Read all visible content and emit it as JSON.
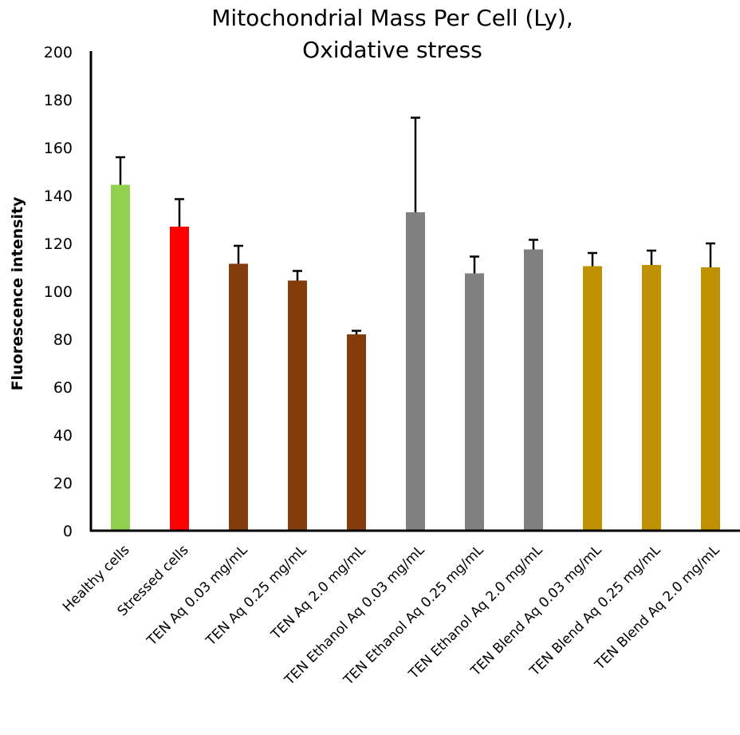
{
  "chart_data": {
    "type": "bar",
    "title_lines": [
      "Mitochondrial Mass Per Cell (Ly),",
      "Oxidative stress"
    ],
    "xlabel": "",
    "ylabel": "Fluorescence intensity",
    "ylim": [
      0,
      200
    ],
    "yticks": [
      0,
      20,
      40,
      60,
      80,
      100,
      120,
      140,
      160,
      180,
      200
    ],
    "grid": false,
    "categories": [
      "Healthy cells",
      "Stressed cells",
      "TEN Aq 0.03 mg/mL",
      "TEN Aq 0.25 mg/mL",
      "TEN Aq 2.0 mg/mL",
      "TEN Ethanol Aq 0.03 mg/mL",
      "TEN Ethanol Aq 0.25 mg/mL",
      "TEN Ethanol Aq 2.0 mg/mL",
      "TEN Blend Aq 0.03 mg/mL",
      "TEN Blend Aq 0.25 mg/mL",
      "TEN Blend Aq 2.0 mg/mL"
    ],
    "values": [
      144.5,
      127,
      111.5,
      104.5,
      82,
      133,
      107.5,
      117.5,
      110.5,
      111,
      110
    ],
    "errors": [
      11.5,
      11.5,
      7.5,
      4,
      1.5,
      39.5,
      7,
      4,
      5.5,
      6,
      10
    ],
    "colors": [
      "#92d050",
      "#ff0000",
      "#843c0c",
      "#843c0c",
      "#843c0c",
      "#808080",
      "#808080",
      "#808080",
      "#bf9000",
      "#bf9000",
      "#bf9000"
    ]
  }
}
